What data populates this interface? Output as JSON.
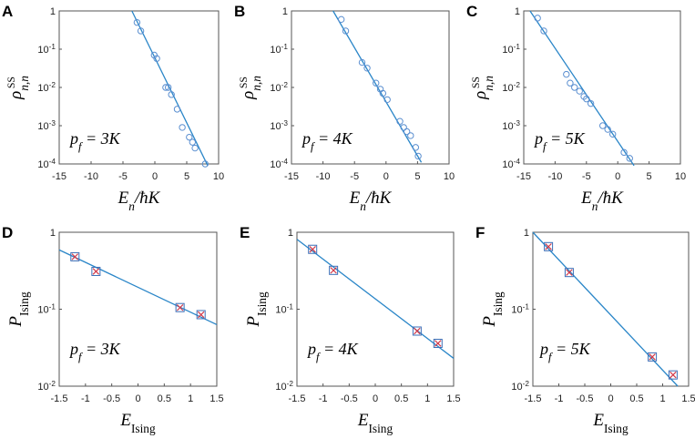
{
  "figure": {
    "width": 763,
    "height": 482
  },
  "colors": {
    "fit_line": "#2a86c8",
    "marker": "#5b8fd0",
    "square_marker": "#3b6fb8",
    "cross_marker": "#d23a4a",
    "frame": "#555555"
  },
  "chart_data": [
    {
      "panel": "A",
      "type": "scatter",
      "yscale": "log",
      "xlim": [
        -15,
        10
      ],
      "ylim": [
        0.0001,
        1
      ],
      "xticks": [
        "-15",
        "-10",
        "-5",
        "0",
        "5",
        "10"
      ],
      "yticks": [
        "1",
        "10-1",
        "10-2",
        "10-3",
        "10-4"
      ],
      "xlabel": "En/ħK",
      "ylabel": "ρn,nSS",
      "annotation": "pf = 3K",
      "points": [
        {
          "x": -2.8,
          "y": 0.5
        },
        {
          "x": -2.2,
          "y": 0.3
        },
        {
          "x": -0.1,
          "y": 0.07
        },
        {
          "x": 0.3,
          "y": 0.057
        },
        {
          "x": 1.7,
          "y": 0.01
        },
        {
          "x": 2.1,
          "y": 0.01
        },
        {
          "x": 2.6,
          "y": 0.0065
        },
        {
          "x": 3.5,
          "y": 0.0027
        },
        {
          "x": 4.3,
          "y": 0.0009
        },
        {
          "x": 5.4,
          "y": 0.0005
        },
        {
          "x": 5.9,
          "y": 0.00037
        },
        {
          "x": 6.3,
          "y": 0.00026
        },
        {
          "x": 7.9,
          "y": 0.0001
        }
      ],
      "fit": {
        "x": [
          -3.6,
          8.3
        ],
        "y": [
          1.0,
          9e-05
        ]
      }
    },
    {
      "panel": "B",
      "type": "scatter",
      "yscale": "log",
      "xlim": [
        -15,
        10
      ],
      "ylim": [
        0.0001,
        1
      ],
      "xticks": [
        "-15",
        "-10",
        "-5",
        "0",
        "5",
        "10"
      ],
      "yticks": [
        "1",
        "10-1",
        "10-2",
        "10-3",
        "10-4"
      ],
      "xlabel": "En/ħK",
      "ylabel": "ρn,nSS",
      "annotation": "pf = 4K",
      "points": [
        {
          "x": -7.1,
          "y": 0.6
        },
        {
          "x": -6.4,
          "y": 0.3
        },
        {
          "x": -3.8,
          "y": 0.045
        },
        {
          "x": -3.0,
          "y": 0.032
        },
        {
          "x": -1.6,
          "y": 0.013
        },
        {
          "x": -0.9,
          "y": 0.009
        },
        {
          "x": -0.5,
          "y": 0.007
        },
        {
          "x": 0.2,
          "y": 0.0048
        },
        {
          "x": 2.2,
          "y": 0.0013
        },
        {
          "x": 2.8,
          "y": 0.0009
        },
        {
          "x": 3.3,
          "y": 0.0007
        },
        {
          "x": 3.9,
          "y": 0.00055
        },
        {
          "x": 4.7,
          "y": 0.00027
        },
        {
          "x": 5.1,
          "y": 0.00016
        }
      ],
      "fit": {
        "x": [
          -8.4,
          5.6
        ],
        "y": [
          1.0,
          0.00011
        ]
      }
    },
    {
      "panel": "C",
      "type": "scatter",
      "yscale": "log",
      "xlim": [
        -15,
        10
      ],
      "ylim": [
        0.0001,
        1
      ],
      "xticks": [
        "-15",
        "-10",
        "-5",
        "0",
        "5",
        "10"
      ],
      "yticks": [
        "1",
        "10-1",
        "10-2",
        "10-3",
        "10-4"
      ],
      "xlabel": "En/ħK",
      "ylabel": "ρn,nSS",
      "annotation": "pf = 5K",
      "points": [
        {
          "x": -12.8,
          "y": 0.65
        },
        {
          "x": -11.8,
          "y": 0.3
        },
        {
          "x": -8.2,
          "y": 0.022
        },
        {
          "x": -7.6,
          "y": 0.013
        },
        {
          "x": -6.9,
          "y": 0.01
        },
        {
          "x": -6.1,
          "y": 0.008
        },
        {
          "x": -5.4,
          "y": 0.0058
        },
        {
          "x": -5.0,
          "y": 0.005
        },
        {
          "x": -4.3,
          "y": 0.0038
        },
        {
          "x": -2.4,
          "y": 0.001
        },
        {
          "x": -1.6,
          "y": 0.0008
        },
        {
          "x": -0.8,
          "y": 0.0006
        },
        {
          "x": 1.0,
          "y": 0.0002
        },
        {
          "x": 1.9,
          "y": 0.00014
        }
      ],
      "fit": {
        "x": [
          -14.0,
          2.6
        ],
        "y": [
          1.0,
          9e-05
        ]
      }
    },
    {
      "panel": "D",
      "type": "scatter",
      "yscale": "log",
      "xlim": [
        -1.5,
        1.5
      ],
      "ylim": [
        0.01,
        1
      ],
      "xticks": [
        "-1.5",
        "-1",
        "-0.5",
        "0",
        "0.5",
        "1",
        "1.5"
      ],
      "yticks": [
        "1",
        "10-1",
        "10-2"
      ],
      "xlabel": "EIsing",
      "ylabel": "PIsing",
      "annotation": "pf = 3K",
      "points": [
        {
          "x": -1.2,
          "y": 0.48
        },
        {
          "x": -0.8,
          "y": 0.31
        },
        {
          "x": 0.8,
          "y": 0.105
        },
        {
          "x": 1.2,
          "y": 0.085
        }
      ],
      "fit": {
        "x": [
          -1.5,
          1.5
        ],
        "y": [
          0.59,
          0.063
        ]
      }
    },
    {
      "panel": "E",
      "type": "scatter",
      "yscale": "log",
      "xlim": [
        -1.5,
        1.5
      ],
      "ylim": [
        0.01,
        1
      ],
      "xticks": [
        "-1.5",
        "-1",
        "-0.5",
        "0",
        "0.5",
        "1",
        "1.5"
      ],
      "yticks": [
        "1",
        "10-1",
        "10-2"
      ],
      "xlabel": "EIsing",
      "ylabel": "PIsing",
      "annotation": "pf = 4K",
      "points": [
        {
          "x": -1.2,
          "y": 0.6
        },
        {
          "x": -0.8,
          "y": 0.32
        },
        {
          "x": 0.8,
          "y": 0.052
        },
        {
          "x": 1.2,
          "y": 0.036
        }
      ],
      "fit": {
        "x": [
          -1.5,
          1.5
        ],
        "y": [
          0.81,
          0.023
        ]
      }
    },
    {
      "panel": "F",
      "type": "scatter",
      "yscale": "log",
      "xlim": [
        -1.5,
        1.5
      ],
      "ylim": [
        0.01,
        1
      ],
      "xticks": [
        "-1.5",
        "-1",
        "-0.5",
        "0",
        "0.5",
        "1",
        "1.5"
      ],
      "yticks": [
        "1",
        "10-1",
        "10-2"
      ],
      "xlabel": "EIsing",
      "ylabel": "PIsing",
      "annotation": "pf = 5K",
      "points": [
        {
          "x": -1.2,
          "y": 0.65
        },
        {
          "x": -0.8,
          "y": 0.3
        },
        {
          "x": 0.8,
          "y": 0.024
        },
        {
          "x": 1.2,
          "y": 0.014
        }
      ],
      "fit": {
        "x": [
          -1.5,
          1.29
        ],
        "y": [
          1.0,
          0.01
        ]
      }
    }
  ]
}
